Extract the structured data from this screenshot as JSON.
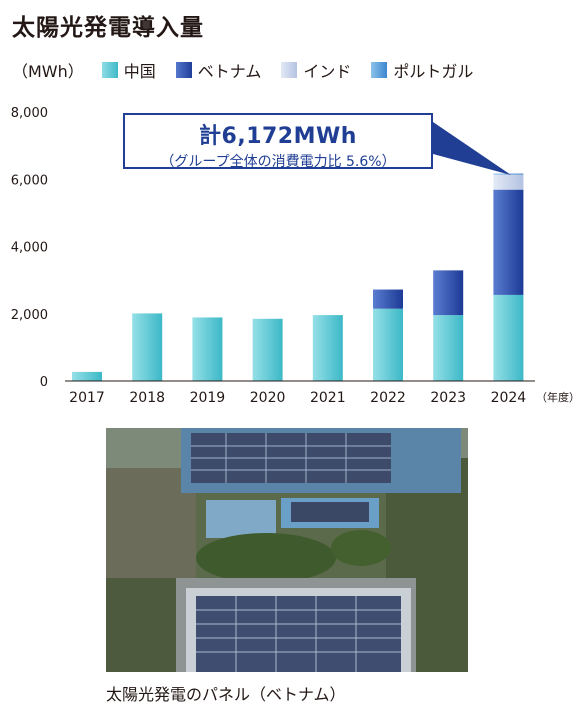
{
  "title": "太陽光発電導入量",
  "unit": "（MWh）",
  "callout": {
    "total": "計6,172MWh",
    "note": "（グループ全体の消費電力比 5.6%）"
  },
  "photo_caption": "太陽光発電のパネル（ベトナム）",
  "chart_data": {
    "type": "bar",
    "stacked": true,
    "categories": [
      "2017",
      "2018",
      "2019",
      "2020",
      "2021",
      "2022",
      "2023",
      "2024"
    ],
    "x_unit": "（年度）",
    "ylim": [
      0,
      8000
    ],
    "yticks": [
      "0",
      "2,000",
      "4,000",
      "6,000",
      "8,000"
    ],
    "ytick_values": [
      0,
      2000,
      4000,
      6000,
      8000
    ],
    "grid": false,
    "legend_position": "top",
    "series": [
      {
        "name": "中国",
        "color": "#5cc9d6",
        "values": [
          270,
          2010,
          1890,
          1850,
          1960,
          2150,
          1960,
          2560
        ]
      },
      {
        "name": "ベトナム",
        "color": "#2d55b5",
        "values": [
          0,
          0,
          0,
          0,
          0,
          570,
          1330,
          3130
        ]
      },
      {
        "name": "インド",
        "color": "#c7d3ea",
        "values": [
          0,
          0,
          0,
          0,
          0,
          0,
          0,
          450
        ]
      },
      {
        "name": "ポルトガル",
        "color": "#5aa0dc",
        "values": [
          0,
          0,
          0,
          0,
          0,
          0,
          0,
          30
        ]
      }
    ]
  }
}
